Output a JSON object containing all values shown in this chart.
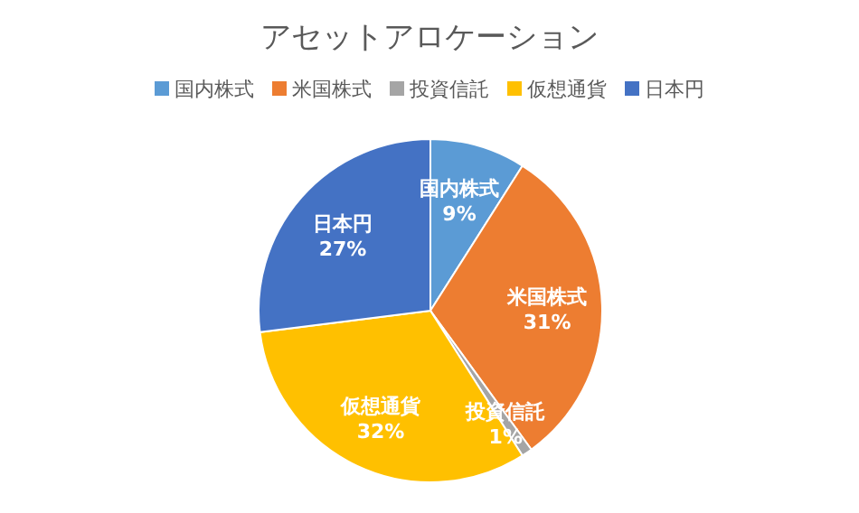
{
  "chart_data": {
    "type": "pie",
    "title": "アセットアロケーション",
    "categories": [
      "国内株式",
      "米国株式",
      "投資信託",
      "仮想通貨",
      "日本円"
    ],
    "values": [
      9,
      31,
      1,
      32,
      27
    ],
    "colors": [
      "#5b9bd5",
      "#ed7d31",
      "#a5a5a5",
      "#ffc000",
      "#4472c4"
    ],
    "value_labels": [
      "9%",
      "31%",
      "1%",
      "32%",
      "27%"
    ],
    "legend": "top"
  }
}
